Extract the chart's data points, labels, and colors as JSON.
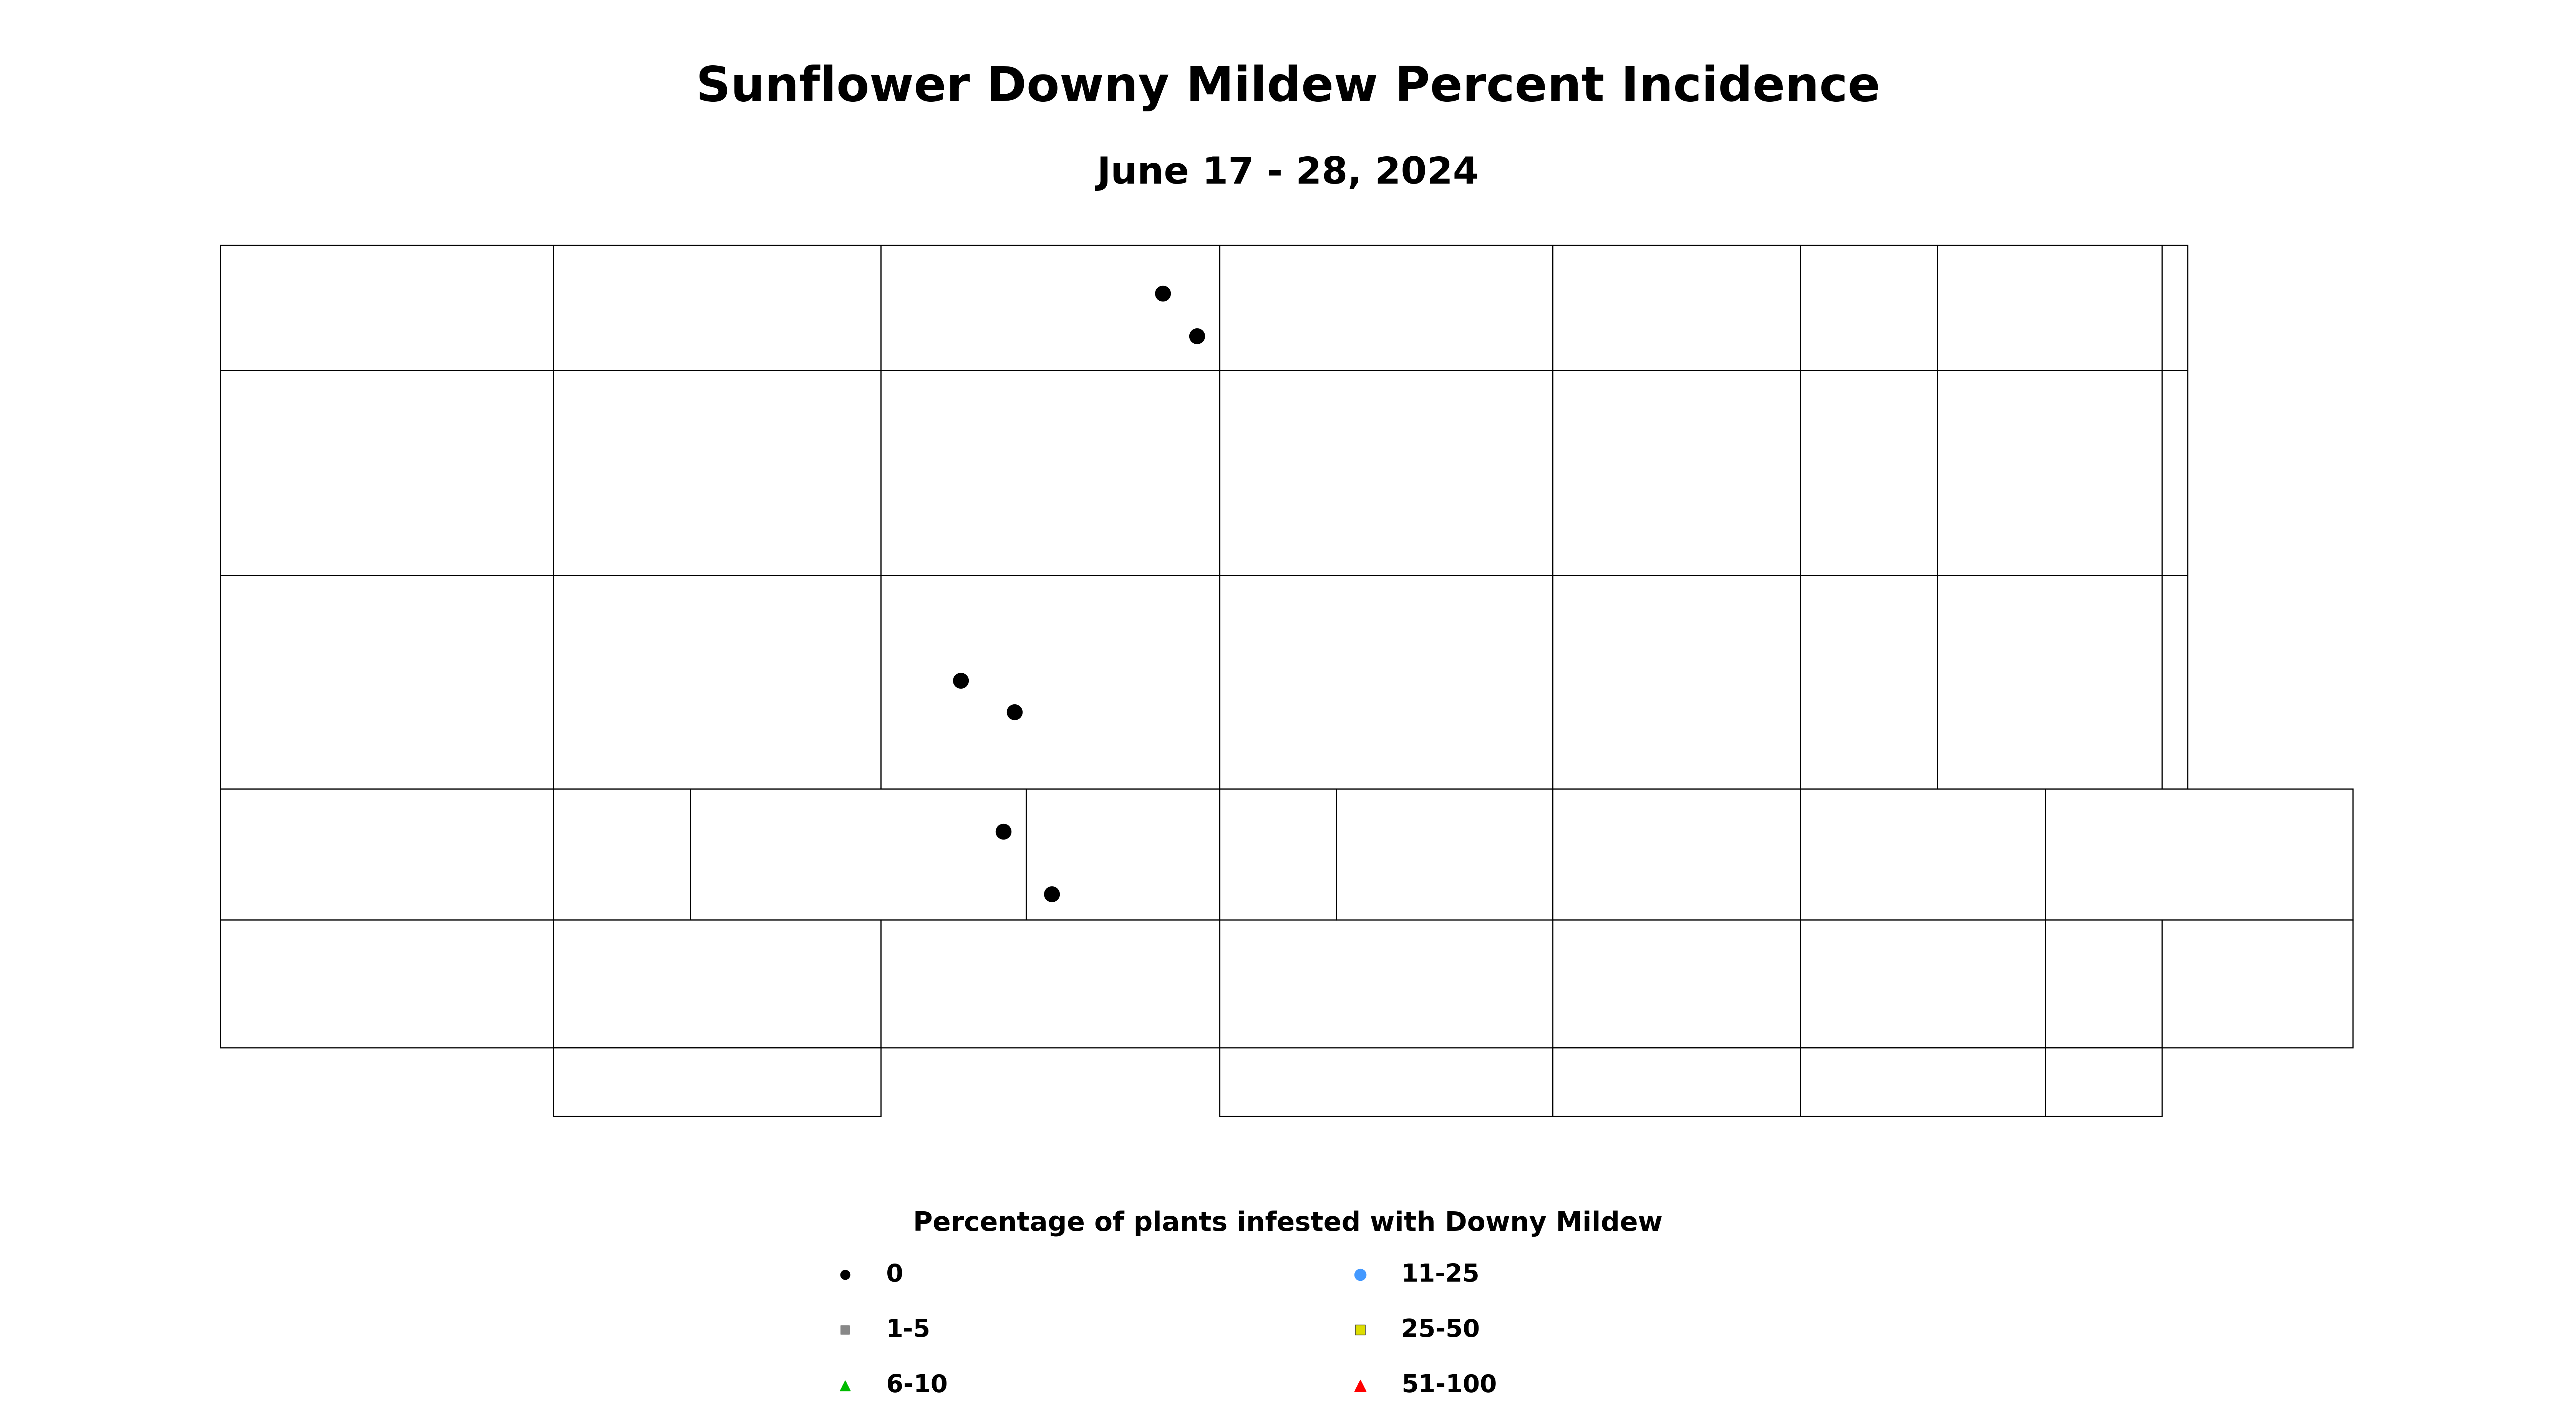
{
  "title": "Sunflower Downy Mildew Percent Incidence",
  "subtitle": "June 17 - 28, 2024",
  "title_fontsize": 90,
  "subtitle_fontsize": 70,
  "legend_title": "Percentage of plants infested with Downy Mildew",
  "legend_title_fontsize": 50,
  "legend_fontsize": 46,
  "background_color": "#ffffff",
  "map_face_color": "#ffffff",
  "map_edge_color": "#000000",
  "map_linewidth": 2.0,
  "xlim": [
    -104.1,
    -96.5
  ],
  "ylim": [
    45.88,
    49.05
  ],
  "data_points": [
    {
      "lon": -100.74,
      "lat": 48.83,
      "category": "0"
    },
    {
      "lon": -100.62,
      "lat": 48.68,
      "category": "0"
    },
    {
      "lon": -101.45,
      "lat": 47.47,
      "category": "0"
    },
    {
      "lon": -101.26,
      "lat": 47.36,
      "category": "0"
    },
    {
      "lon": -101.3,
      "lat": 46.94,
      "category": "0"
    },
    {
      "lon": -101.13,
      "lat": 46.72,
      "category": "0"
    }
  ],
  "categories": {
    "0": {
      "marker": "o",
      "facecolor": "#000000",
      "edgecolor": "#000000",
      "size": 800,
      "label": "0"
    },
    "1": {
      "marker": "s",
      "facecolor": "#888888",
      "edgecolor": "#888888",
      "size": 600,
      "label": "1-5"
    },
    "2": {
      "marker": "^",
      "facecolor": "#00bb00",
      "edgecolor": "#00bb00",
      "size": 800,
      "label": "6-10"
    },
    "3": {
      "marker": "o",
      "facecolor": "#4499ff",
      "edgecolor": "#4499ff",
      "size": 1100,
      "label": "11-25"
    },
    "4": {
      "marker": "s",
      "facecolor": "#dddd00",
      "edgecolor": "#333333",
      "size": 800,
      "label": "25-50"
    },
    "5": {
      "marker": "^",
      "facecolor": "#ff0000",
      "edgecolor": "#ff0000",
      "size": 1100,
      "label": "51-100"
    }
  },
  "fig_width": 67.06,
  "fig_height": 37.0,
  "dpi": 100,
  "nd_counties": {
    "Divide": [
      [
        -104.05,
        48.56
      ],
      [
        -104.05,
        49.0
      ],
      [
        -102.88,
        49.0
      ],
      [
        -102.88,
        48.56
      ],
      [
        -104.05,
        48.56
      ]
    ],
    "Burke": [
      [
        -102.88,
        48.56
      ],
      [
        -102.88,
        49.0
      ],
      [
        -101.73,
        49.0
      ],
      [
        -101.73,
        48.56
      ],
      [
        -102.88,
        48.56
      ]
    ],
    "Renville": [
      [
        -101.73,
        48.56
      ],
      [
        -101.73,
        49.0
      ],
      [
        -100.54,
        49.0
      ],
      [
        -100.54,
        48.56
      ],
      [
        -101.73,
        48.56
      ]
    ],
    "Bottineau": [
      [
        -100.54,
        48.56
      ],
      [
        -100.54,
        49.0
      ],
      [
        -99.37,
        49.0
      ],
      [
        -99.37,
        48.56
      ],
      [
        -100.54,
        48.56
      ]
    ],
    "Rolette": [
      [
        -99.37,
        48.56
      ],
      [
        -99.37,
        49.0
      ],
      [
        -98.5,
        49.0
      ],
      [
        -98.5,
        48.56
      ],
      [
        -99.37,
        48.56
      ]
    ],
    "Towner": [
      [
        -98.5,
        48.56
      ],
      [
        -98.5,
        49.0
      ],
      [
        -98.02,
        49.0
      ],
      [
        -98.02,
        48.56
      ],
      [
        -98.5,
        48.56
      ]
    ],
    "Cavalier": [
      [
        -98.02,
        48.56
      ],
      [
        -98.02,
        49.0
      ],
      [
        -97.23,
        49.0
      ],
      [
        -97.23,
        48.56
      ],
      [
        -98.02,
        48.56
      ]
    ],
    "Pembina": [
      [
        -97.23,
        48.56
      ],
      [
        -97.23,
        49.0
      ],
      [
        -97.14,
        49.0
      ],
      [
        -97.14,
        48.56
      ],
      [
        -97.23,
        48.56
      ]
    ],
    "Williams": [
      [
        -104.05,
        47.84
      ],
      [
        -104.05,
        48.56
      ],
      [
        -102.88,
        48.56
      ],
      [
        -102.88,
        47.84
      ],
      [
        -104.05,
        47.84
      ]
    ],
    "Mountrail": [
      [
        -102.88,
        47.84
      ],
      [
        -102.88,
        48.56
      ],
      [
        -101.73,
        48.56
      ],
      [
        -101.73,
        47.84
      ],
      [
        -102.88,
        47.84
      ]
    ],
    "Ward": [
      [
        -101.73,
        47.84
      ],
      [
        -101.73,
        48.56
      ],
      [
        -100.54,
        48.56
      ],
      [
        -100.54,
        47.84
      ],
      [
        -101.73,
        47.84
      ]
    ],
    "McHenry": [
      [
        -100.54,
        47.84
      ],
      [
        -100.54,
        48.56
      ],
      [
        -99.37,
        48.56
      ],
      [
        -99.37,
        47.84
      ],
      [
        -100.54,
        47.84
      ]
    ],
    "Pierce": [
      [
        -99.37,
        47.84
      ],
      [
        -99.37,
        48.56
      ],
      [
        -98.5,
        48.56
      ],
      [
        -98.5,
        47.84
      ],
      [
        -99.37,
        47.84
      ]
    ],
    "Benson": [
      [
        -98.5,
        47.84
      ],
      [
        -98.5,
        48.56
      ],
      [
        -98.02,
        48.56
      ],
      [
        -98.02,
        47.84
      ],
      [
        -98.5,
        47.84
      ]
    ],
    "Ramsey": [
      [
        -98.02,
        47.84
      ],
      [
        -98.02,
        48.56
      ],
      [
        -97.23,
        48.56
      ],
      [
        -97.23,
        47.84
      ],
      [
        -98.02,
        47.84
      ]
    ],
    "Cavalier2": [
      [
        -97.23,
        47.84
      ],
      [
        -97.23,
        48.56
      ],
      [
        -97.14,
        48.56
      ],
      [
        -97.14,
        47.84
      ],
      [
        -97.23,
        47.84
      ]
    ],
    "McKenzie": [
      [
        -104.05,
        47.09
      ],
      [
        -104.05,
        47.84
      ],
      [
        -102.88,
        47.84
      ],
      [
        -102.88,
        47.09
      ],
      [
        -104.05,
        47.09
      ]
    ],
    "Dunn": [
      [
        -102.88,
        47.09
      ],
      [
        -102.88,
        47.84
      ],
      [
        -101.73,
        47.84
      ],
      [
        -101.73,
        47.09
      ],
      [
        -102.88,
        47.09
      ]
    ],
    "McLean": [
      [
        -101.73,
        47.09
      ],
      [
        -101.73,
        47.84
      ],
      [
        -100.54,
        47.84
      ],
      [
        -100.54,
        47.09
      ],
      [
        -101.73,
        47.09
      ]
    ],
    "Sheridan": [
      [
        -100.54,
        47.09
      ],
      [
        -100.54,
        47.84
      ],
      [
        -99.37,
        47.84
      ],
      [
        -99.37,
        47.09
      ],
      [
        -100.54,
        47.09
      ]
    ],
    "Wells": [
      [
        -99.37,
        47.09
      ],
      [
        -99.37,
        47.84
      ],
      [
        -98.5,
        47.84
      ],
      [
        -98.5,
        47.09
      ],
      [
        -99.37,
        47.09
      ]
    ],
    "Eddy": [
      [
        -98.5,
        47.09
      ],
      [
        -98.5,
        47.84
      ],
      [
        -98.02,
        47.84
      ],
      [
        -98.02,
        47.09
      ],
      [
        -98.5,
        47.09
      ]
    ],
    "Nelson": [
      [
        -98.02,
        47.09
      ],
      [
        -98.02,
        47.84
      ],
      [
        -97.23,
        47.84
      ],
      [
        -97.23,
        47.09
      ],
      [
        -98.02,
        47.09
      ]
    ],
    "Walsh": [
      [
        -97.23,
        47.09
      ],
      [
        -97.23,
        47.84
      ],
      [
        -97.14,
        47.84
      ],
      [
        -97.14,
        47.09
      ],
      [
        -97.23,
        47.09
      ]
    ],
    "Billings": [
      [
        -104.05,
        46.63
      ],
      [
        -104.05,
        47.09
      ],
      [
        -102.88,
        47.09
      ],
      [
        -102.88,
        46.63
      ],
      [
        -104.05,
        46.63
      ]
    ],
    "Golden Valley": [
      [
        -102.88,
        46.63
      ],
      [
        -102.88,
        47.09
      ],
      [
        -102.4,
        47.09
      ],
      [
        -102.4,
        46.63
      ],
      [
        -102.88,
        46.63
      ]
    ],
    "Stark": [
      [
        -102.4,
        46.63
      ],
      [
        -102.4,
        47.09
      ],
      [
        -101.22,
        47.09
      ],
      [
        -101.22,
        46.63
      ],
      [
        -102.4,
        46.63
      ]
    ],
    "Morton": [
      [
        -101.22,
        46.63
      ],
      [
        -101.22,
        47.09
      ],
      [
        -100.54,
        47.09
      ],
      [
        -100.54,
        46.63
      ],
      [
        -101.22,
        46.63
      ]
    ],
    "Burleigh": [
      [
        -100.54,
        46.63
      ],
      [
        -100.54,
        47.09
      ],
      [
        -100.13,
        47.09
      ],
      [
        -100.13,
        46.63
      ],
      [
        -100.54,
        46.63
      ]
    ],
    "Kidder": [
      [
        -100.13,
        46.63
      ],
      [
        -100.13,
        47.09
      ],
      [
        -99.37,
        47.09
      ],
      [
        -99.37,
        46.63
      ],
      [
        -100.13,
        46.63
      ]
    ],
    "Stutsman": [
      [
        -99.37,
        46.63
      ],
      [
        -99.37,
        47.09
      ],
      [
        -98.5,
        47.09
      ],
      [
        -98.5,
        46.63
      ],
      [
        -99.37,
        46.63
      ]
    ],
    "Barnes": [
      [
        -98.5,
        46.63
      ],
      [
        -98.5,
        47.09
      ],
      [
        -97.64,
        47.09
      ],
      [
        -97.64,
        46.63
      ],
      [
        -98.5,
        46.63
      ]
    ],
    "Cass": [
      [
        -97.64,
        46.63
      ],
      [
        -97.64,
        47.09
      ],
      [
        -96.56,
        47.09
      ],
      [
        -96.56,
        46.63
      ],
      [
        -97.64,
        46.63
      ]
    ],
    "Slope": [
      [
        -104.05,
        46.18
      ],
      [
        -104.05,
        46.63
      ],
      [
        -102.88,
        46.63
      ],
      [
        -102.88,
        46.18
      ],
      [
        -104.05,
        46.18
      ]
    ],
    "Hettinger": [
      [
        -102.88,
        46.18
      ],
      [
        -102.88,
        46.63
      ],
      [
        -101.73,
        46.63
      ],
      [
        -101.73,
        46.18
      ],
      [
        -102.88,
        46.18
      ]
    ],
    "Grant": [
      [
        -101.73,
        46.18
      ],
      [
        -101.73,
        46.63
      ],
      [
        -100.54,
        46.63
      ],
      [
        -100.54,
        46.18
      ],
      [
        -101.73,
        46.18
      ]
    ],
    "Sioux": [
      [
        -100.54,
        45.94
      ],
      [
        -100.54,
        46.18
      ],
      [
        -99.37,
        46.18
      ],
      [
        -99.37,
        45.94
      ],
      [
        -100.54,
        45.94
      ]
    ],
    "Logan": [
      [
        -99.37,
        46.18
      ],
      [
        -99.37,
        46.63
      ],
      [
        -98.5,
        46.63
      ],
      [
        -98.5,
        46.18
      ],
      [
        -99.37,
        46.18
      ]
    ],
    "LaMoure": [
      [
        -98.5,
        46.18
      ],
      [
        -98.5,
        46.63
      ],
      [
        -97.64,
        46.63
      ],
      [
        -97.64,
        46.18
      ],
      [
        -98.5,
        46.18
      ]
    ],
    "Ransom": [
      [
        -97.64,
        46.18
      ],
      [
        -97.64,
        46.63
      ],
      [
        -97.23,
        46.63
      ],
      [
        -97.23,
        46.18
      ],
      [
        -97.64,
        46.18
      ]
    ],
    "Richland": [
      [
        -97.23,
        46.18
      ],
      [
        -97.23,
        46.63
      ],
      [
        -96.56,
        46.63
      ],
      [
        -96.56,
        46.18
      ],
      [
        -97.23,
        46.18
      ]
    ],
    "Adams": [
      [
        -102.88,
        45.94
      ],
      [
        -102.88,
        46.18
      ],
      [
        -101.73,
        46.18
      ],
      [
        -101.73,
        45.94
      ],
      [
        -102.88,
        45.94
      ]
    ],
    "McIntosh": [
      [
        -99.37,
        45.94
      ],
      [
        -99.37,
        46.18
      ],
      [
        -98.5,
        46.18
      ],
      [
        -98.5,
        45.94
      ],
      [
        -99.37,
        45.94
      ]
    ],
    "Dickey": [
      [
        -98.5,
        45.94
      ],
      [
        -98.5,
        46.18
      ],
      [
        -97.64,
        46.18
      ],
      [
        -97.64,
        45.94
      ],
      [
        -98.5,
        45.94
      ]
    ],
    "Sargent": [
      [
        -97.64,
        45.94
      ],
      [
        -97.64,
        46.18
      ],
      [
        -97.23,
        46.18
      ],
      [
        -97.23,
        45.94
      ],
      [
        -97.64,
        45.94
      ]
    ]
  }
}
